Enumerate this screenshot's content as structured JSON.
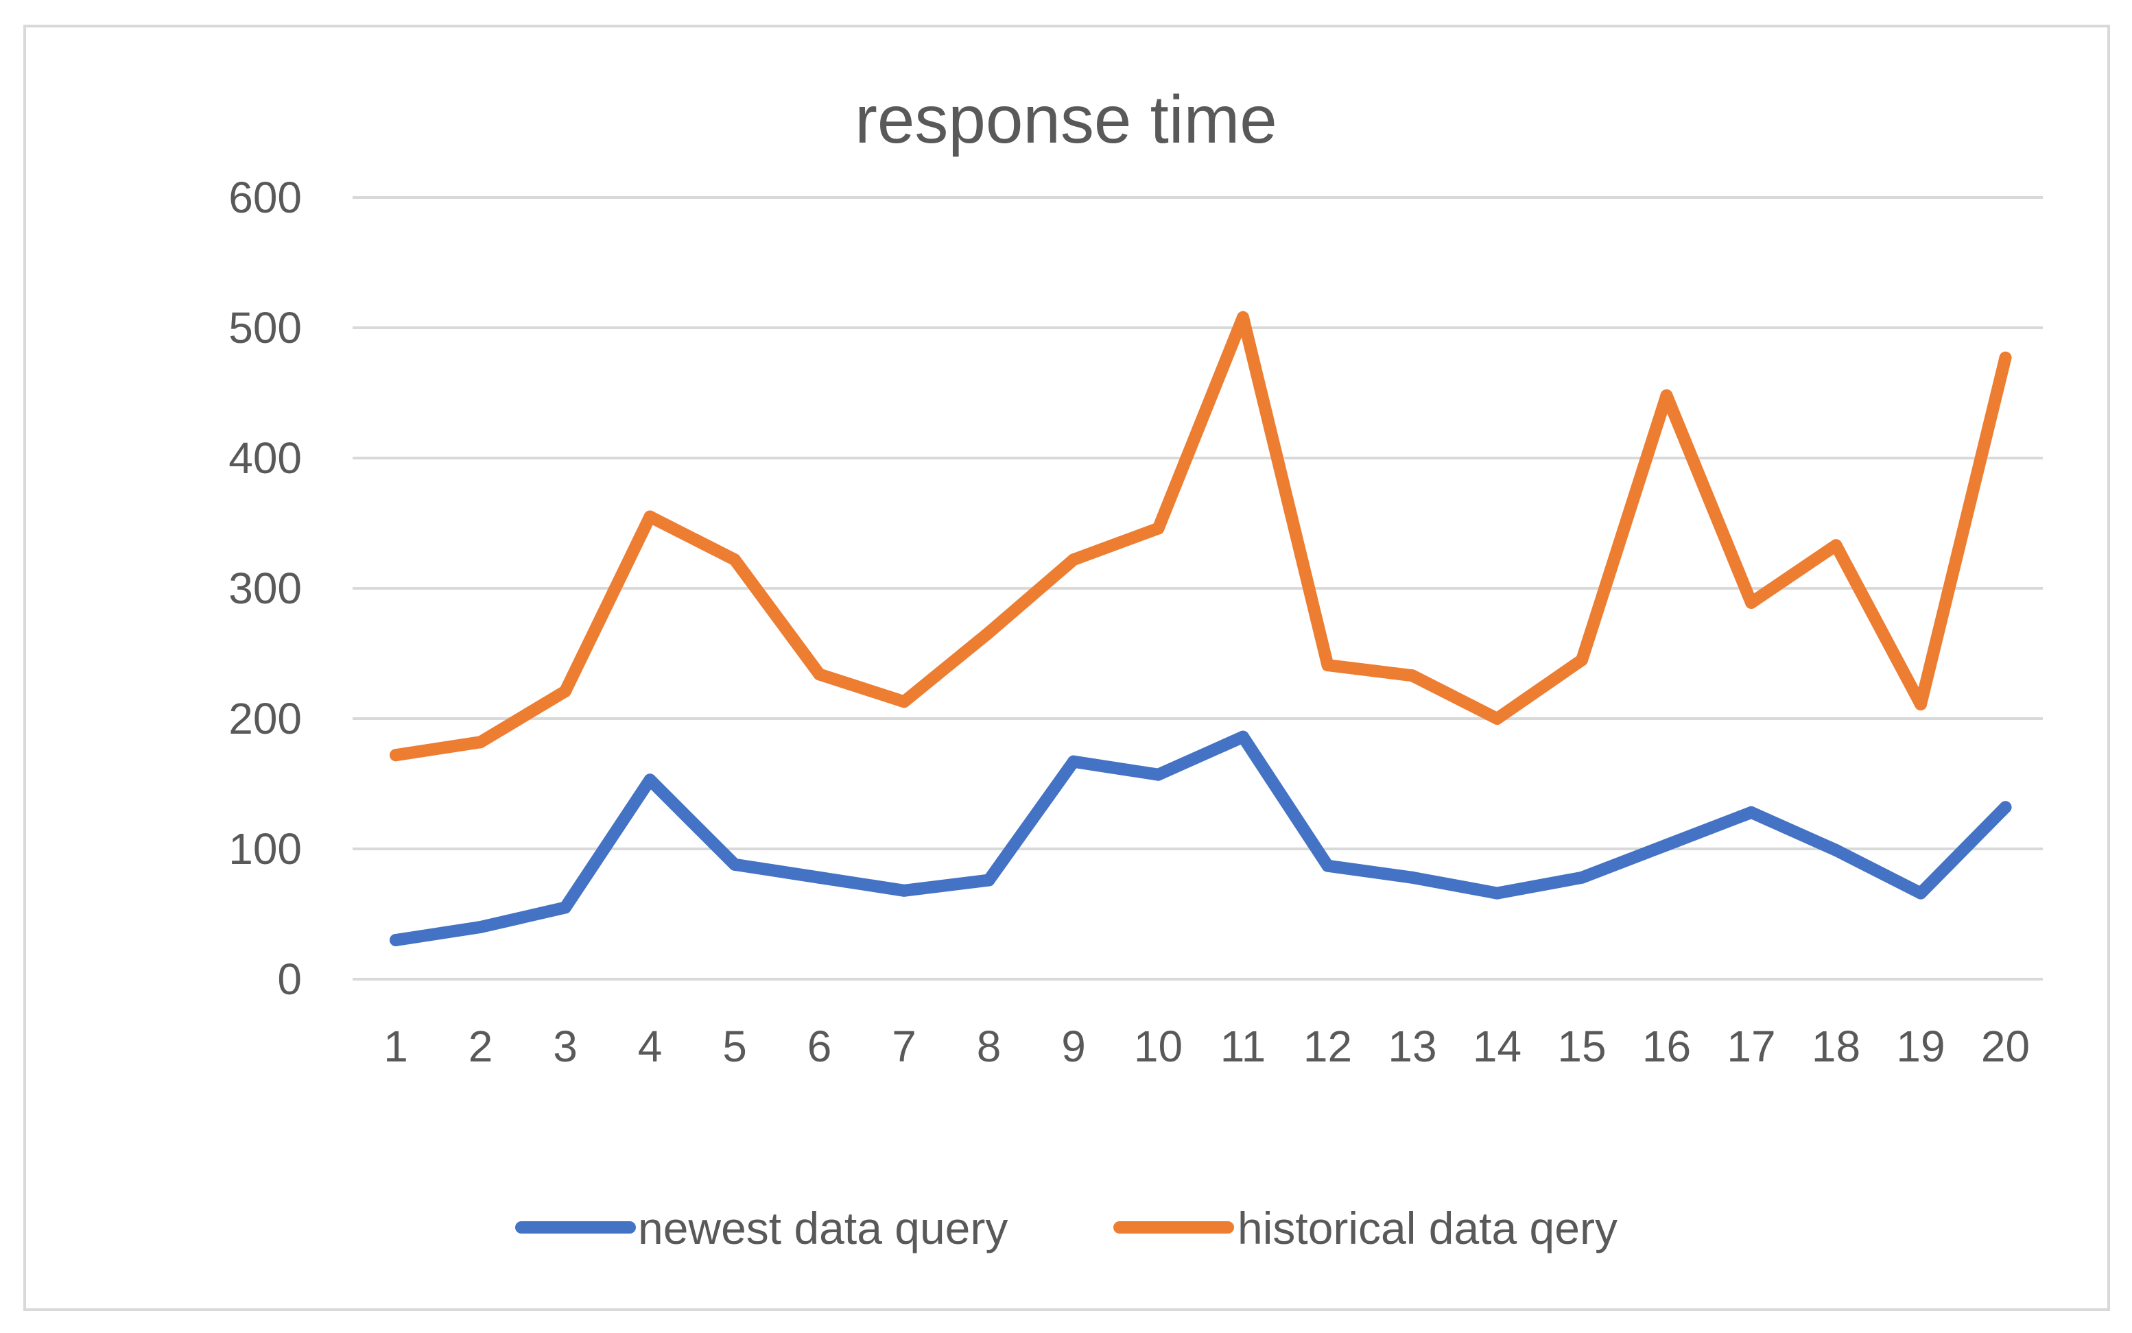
{
  "chart_data": {
    "type": "line",
    "title": "response time",
    "xlabel": "",
    "ylabel": "",
    "categories": [
      "1",
      "2",
      "3",
      "4",
      "5",
      "6",
      "7",
      "8",
      "9",
      "10",
      "11",
      "12",
      "13",
      "14",
      "15",
      "16",
      "17",
      "18",
      "19",
      "20"
    ],
    "y_ticks": [
      "0",
      "100",
      "200",
      "300",
      "400",
      "500",
      "600"
    ],
    "ylim": [
      0,
      600
    ],
    "grid": true,
    "legend_position": "bottom",
    "series": [
      {
        "name": "newest data query",
        "color": "#4472c4",
        "values": [
          30,
          40,
          55,
          153,
          88,
          78,
          68,
          76,
          167,
          157,
          186,
          87,
          78,
          66,
          78,
          103,
          128,
          99,
          66,
          132
        ]
      },
      {
        "name": "historical data qery",
        "color": "#ed7d31",
        "values": [
          172,
          182,
          221,
          355,
          322,
          234,
          213,
          266,
          322,
          346,
          508,
          241,
          233,
          200,
          245,
          448,
          289,
          333,
          211,
          477
        ]
      }
    ]
  }
}
